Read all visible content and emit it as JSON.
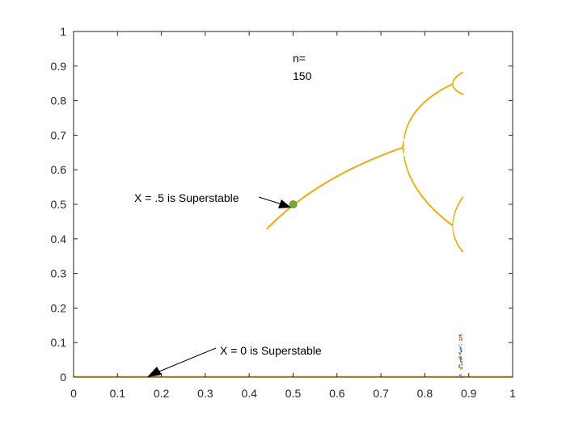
{
  "chart_data": {
    "type": "scatter",
    "title": "",
    "xlabel": "",
    "ylabel": "",
    "xlim": [
      0,
      1
    ],
    "ylim": [
      0,
      1
    ],
    "x_ticks": [
      "0",
      "0.1",
      "0.2",
      "0.3",
      "0.4",
      "0.5",
      "0.6",
      "0.7",
      "0.8",
      "0.9",
      "1"
    ],
    "y_ticks": [
      "0",
      "0.1",
      "0.2",
      "0.3",
      "0.4",
      "0.5",
      "0.6",
      "0.7",
      "0.8",
      "0.9",
      "1"
    ],
    "grid": false,
    "box": true,
    "iteration_label": [
      "n=",
      "150"
    ],
    "annotations": [
      {
        "text": "X =  .5 is Superstable",
        "target": [
          0.5,
          0.5
        ]
      },
      {
        "text": "X = 0 is Superstable",
        "target": [
          0.17,
          0.0
        ]
      }
    ],
    "highlight_point": {
      "x": 0.5,
      "y": 0.5,
      "color": "#77AC30"
    },
    "map": "x_{n+1} = r*x_n*(1 - x_n) scaled so parameter axis spans 0..0.89",
    "series_colors": [
      "#0072BD",
      "#D95319",
      "#EDB120",
      "#7E2F8E",
      "#77AC30",
      "#4DBEEE",
      "#A2142F"
    ],
    "stable_color": "#EDB120",
    "zero_line": {
      "y": 0,
      "x_from": 0,
      "x_to": 1,
      "color": "#EDB120"
    },
    "onset_x": 0.44,
    "end_x": 0.885
  }
}
